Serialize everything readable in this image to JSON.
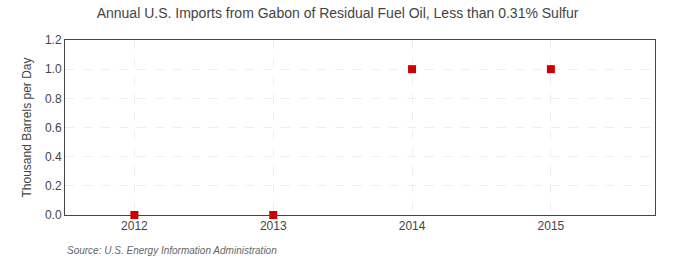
{
  "chart_data": {
    "type": "scatter",
    "title": "Annual U.S. Imports from Gabon of Residual Fuel Oil, Less than 0.31% Sulfur",
    "ylabel": "Thousand Barrels per Day",
    "annotations": [
      "Source: U.S. Energy Information Administration"
    ],
    "x": [
      2012,
      2013,
      2014,
      2015
    ],
    "values": [
      0.0,
      0.0,
      1.0,
      1.0
    ],
    "color": "#CC0000",
    "marker": "square",
    "xlim": [
      2011.5,
      2015.75
    ],
    "xticks": [
      2012,
      2013,
      2014,
      2015
    ],
    "ylim": [
      0.0,
      1.2
    ],
    "yticks": [
      {
        "value": 0.0,
        "label": "0.0"
      },
      0.2,
      0.4,
      0.6,
      0.8,
      {
        "value": 1.0,
        "label": "1.0"
      },
      1.2
    ],
    "grid": true
  }
}
